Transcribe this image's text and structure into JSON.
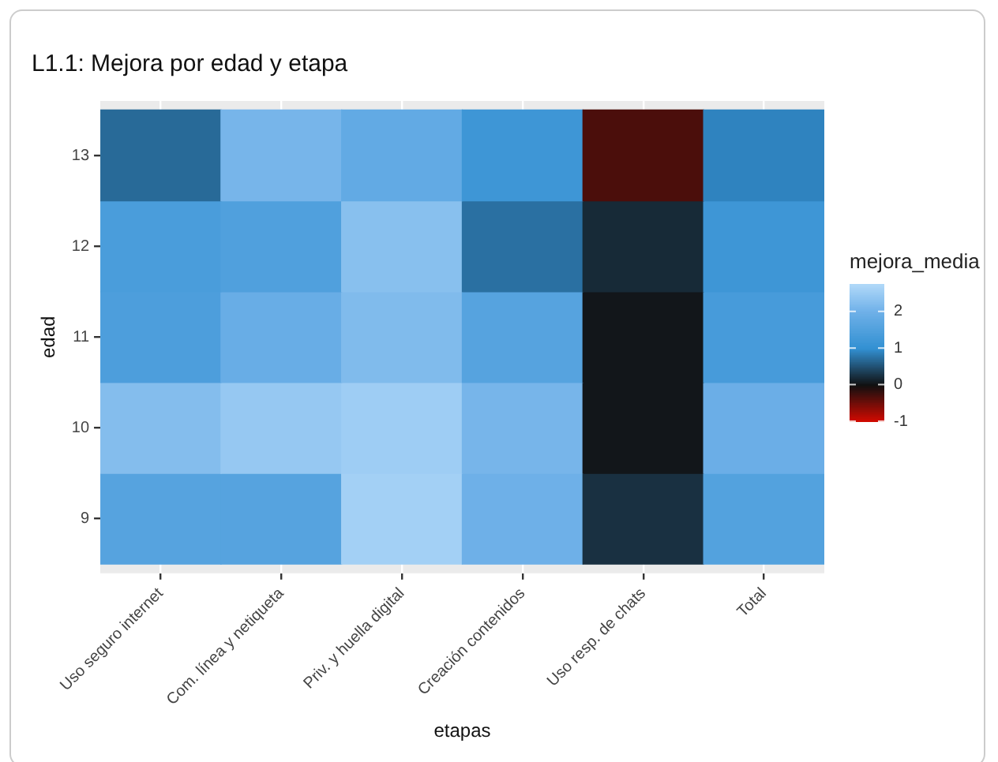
{
  "chart_data": {
    "type": "heatmap",
    "title": "L1.1: Mejora por edad y etapa",
    "xlabel": "etapas",
    "ylabel": "edad",
    "clabel": "mejora_media",
    "categories": [
      "Uso seguro internet",
      "Com. línea y netiqueta",
      "Priv. y huella digital",
      "Creación contenidos",
      "Uso resp. de chats",
      "Total"
    ],
    "y_categories": [
      "13",
      "12",
      "11",
      "10",
      "9"
    ],
    "cells": [
      [
        0.7,
        2.1,
        1.8,
        1.2,
        -0.3,
        0.9
      ],
      [
        1.4,
        1.5,
        2.3,
        0.75,
        0.2,
        1.2
      ],
      [
        1.45,
        1.9,
        2.2,
        1.6,
        0.05,
        1.35
      ],
      [
        2.25,
        2.45,
        2.55,
        2.1,
        0.05,
        1.95
      ],
      [
        1.6,
        1.6,
        2.6,
        2.0,
        0.25,
        1.55
      ]
    ],
    "clim": [
      -1,
      2.75
    ],
    "cticks": [
      -1,
      0,
      1,
      2
    ],
    "grid": true
  }
}
